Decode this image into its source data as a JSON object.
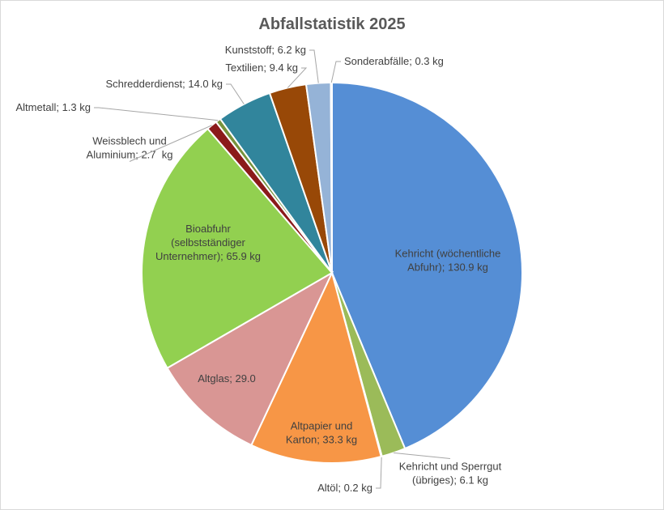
{
  "chart_data": {
    "type": "pie",
    "title": "Abfallstatistik 2025",
    "values": [
      130.9,
      6.1,
      0.2,
      33.3,
      29.0,
      65.9,
      2.7,
      1.3,
      14.0,
      9.4,
      6.2,
      0.3
    ],
    "value_labels": [
      "Kehricht (wöchentliche Abfuhr); 130.9 kg",
      "Kehricht und Sperrgut (übriges); 6.1 kg",
      "Altöl; 0.2 kg",
      "Altpapier und Karton; 33.3 kg",
      "Altglas; 29.0 kg",
      "Bioabfuhr (selbstständiger Unternehmer); 65.9 kg",
      "Weissblech und Aluminium; 2.7  kg",
      "Altmetall; 1.3 kg",
      "Schredderdienst; 14.0 kg",
      "Textilien; 9.4 kg",
      "Kunststoff; 6.2 kg",
      "Sonderabfälle; 0.3 kg"
    ],
    "colors": [
      "#558ed5",
      "#9bbb59",
      "#4f81bd",
      "#f79646",
      "#d99694",
      "#92d050",
      "#8b1a1a",
      "#77933c",
      "#31859c",
      "#984807",
      "#95b3d7",
      "#c0c0c0"
    ]
  }
}
